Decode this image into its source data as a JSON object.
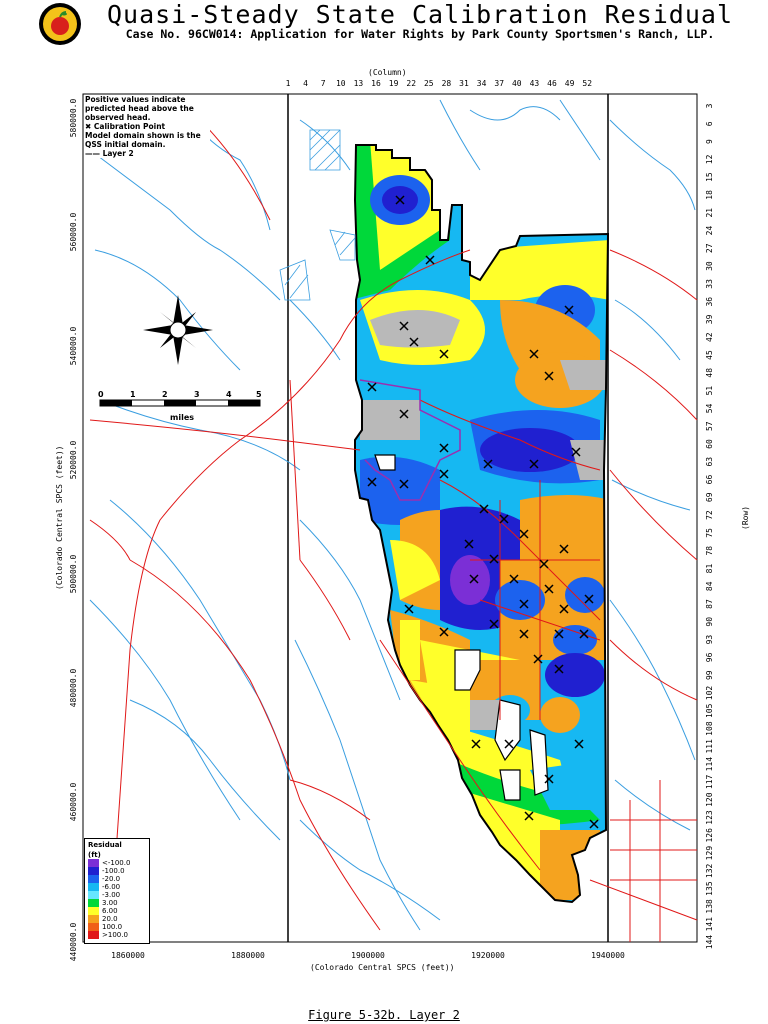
{
  "title": "Quasi-Steady State Calibration Residual",
  "subtitle": "Case No. 96CW014: Application for Water Rights by Park County Sportsmen's Ranch, LLP.",
  "caption": "Figure 5-32b.  Layer 2",
  "notes": {
    "line1": "Positive values indicate",
    "line2": "predicted head above the",
    "line3": "observed head.",
    "line4": "✖ Calibration Point",
    "line5": "Model domain shown is the",
    "line6": "QSS initial domain.",
    "line7": "——  Layer 2"
  },
  "column_axis": {
    "label": "(Column)",
    "ticks": [
      "1",
      "4",
      "7",
      "10",
      "13",
      "16",
      "19",
      "22",
      "25",
      "28",
      "31",
      "34",
      "37",
      "40",
      "43",
      "46",
      "49",
      "52"
    ]
  },
  "row_axis": {
    "label": "(Row)",
    "ticks": [
      "3",
      "6",
      "9",
      "12",
      "15",
      "18",
      "21",
      "24",
      "27",
      "30",
      "33",
      "36",
      "39",
      "42",
      "45",
      "48",
      "51",
      "54",
      "57",
      "60",
      "63",
      "66",
      "69",
      "72",
      "75",
      "78",
      "81",
      "84",
      "87",
      "90",
      "93",
      "96",
      "99",
      "102",
      "105",
      "108",
      "111",
      "114",
      "117",
      "120",
      "123",
      "126",
      "129",
      "132",
      "135",
      "138",
      "141",
      "144"
    ]
  },
  "x_axis": {
    "label": "(Colorado Central SPCS (feet))",
    "ticks": [
      "1860000",
      "1880000",
      "1900000",
      "1920000",
      "1940000"
    ]
  },
  "y_axis": {
    "label": "(Colorado Central SPCS (feet))",
    "ticks": [
      "580000.0",
      "560000.0",
      "540000.0",
      "520000.0",
      "500000.0",
      "480000.0",
      "460000.0",
      "440000.0"
    ]
  },
  "scale_bar": {
    "ticks": [
      "0",
      "1",
      "2",
      "3",
      "4",
      "5"
    ],
    "unit": "miles"
  },
  "legend": {
    "title": "Residual",
    "unit": "(ft)",
    "items": [
      {
        "label": "<-100.0",
        "color": "#7b2fd6"
      },
      {
        "label": "-100.0",
        "color": "#2020d0"
      },
      {
        "label": "-20.0",
        "color": "#1c62ee"
      },
      {
        "label": "-6.00",
        "color": "#16b8f2"
      },
      {
        "label": "-3.00",
        "color": "#66e6ff"
      },
      {
        "label": "3.00",
        "color": "#00d83a"
      },
      {
        "label": "6.00",
        "color": "#ffff2a"
      },
      {
        "label": "20.0",
        "color": "#f5a31f"
      },
      {
        "label": "100.0",
        "color": "#f06018"
      },
      {
        "label": ">100.0",
        "color": "#e01818"
      }
    ]
  },
  "colors": {
    "neutral": "#b9b9b9",
    "river": "#3a9ee0",
    "road": "#e01818",
    "boundary": "#000000",
    "subbasin": "#9a2fb0"
  }
}
